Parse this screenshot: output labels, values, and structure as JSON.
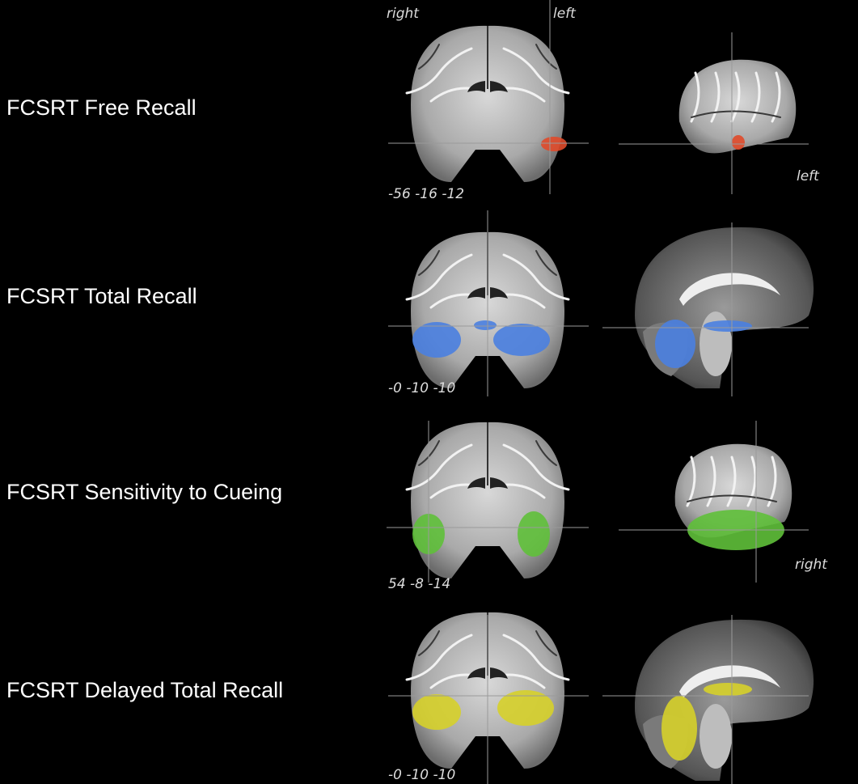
{
  "orientation": {
    "right": "right",
    "left": "left"
  },
  "rows": [
    {
      "label": "FCSRT Free Recall",
      "coords": "-56 -16 -12",
      "side_label": "left"
    },
    {
      "label": "FCSRT Total Recall",
      "coords": "-0 -10 -10"
    },
    {
      "label": "FCSRT Sensitivity to Cueing",
      "coords": "54 -8 -14",
      "side_label": "right"
    },
    {
      "label": "FCSRT Delayed Total Recall",
      "coords": "-0 -10 -10"
    }
  ]
}
